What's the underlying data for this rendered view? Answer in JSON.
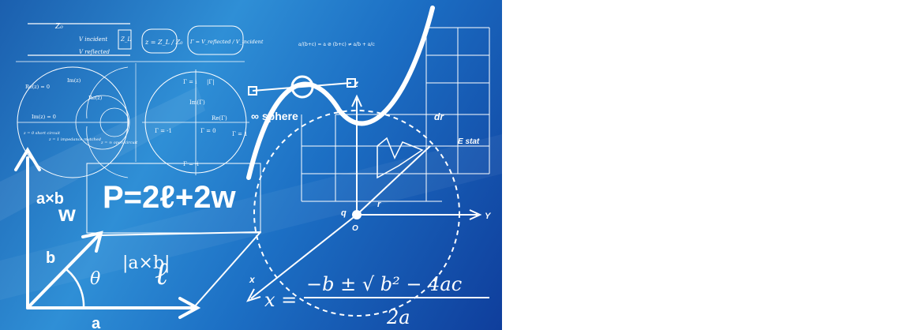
{
  "image": {
    "formula_perimeter": "P=2ℓ+2w",
    "formula_quadratic_lhs": "x =",
    "formula_quadratic_num": "−b ± √ b² − 4ac",
    "formula_quadratic_den": "2a",
    "cross_product_top": "a×b",
    "cross_product_mid": "|a×b|",
    "label_w": "w",
    "label_b": "b",
    "label_a": "a",
    "label_theta": "θ",
    "label_ell": "ℓ",
    "axis_x": "x",
    "axis_y": "Y",
    "axis_z": "z",
    "origin": "O",
    "charge": "q",
    "vector_r": "r",
    "vec_dr": "dr",
    "vec_estat": "E stat",
    "sphere_text": "∞ sphere",
    "z0": "Z₀",
    "v_incident": "V incident",
    "v_reflected": "V reflected",
    "zl": "Z_L",
    "z_eq": "z = Z_L / Z₀",
    "gamma_eq": "Γ = V_reflected / V_incident",
    "smith_labels": [
      "Re(z) = 0",
      "Im(z)",
      "Re(z)",
      "Im(z) = 0",
      "z = 0 short circuit",
      "z = 1 impedance matched",
      "z = ∞ open circuit"
    ],
    "gamma_labels": [
      "Γ = i",
      "|Γ|",
      "Im(Γ)",
      "Re(Γ)",
      "Γ = -1",
      "Γ = 0",
      "Γ = 1",
      "Γ = -i"
    ],
    "small_formula": "a/(b+c) = a ⊘ (b+c) ≠ a/b + a/c"
  }
}
